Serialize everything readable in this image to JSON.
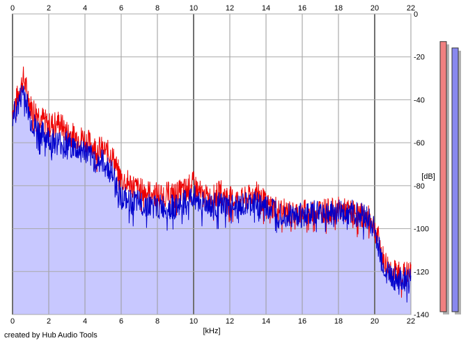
{
  "chart_data": {
    "type": "line",
    "title": "",
    "xlabel": "[kHz]",
    "ylabel": "[dB]",
    "x_ticks": [
      "0",
      "2",
      "4",
      "6",
      "8",
      "10",
      "12",
      "14",
      "16",
      "18",
      "20",
      "22"
    ],
    "y_ticks": [
      "0",
      "-20",
      "-40",
      "-60",
      "-80",
      "-100",
      "-120",
      "-140"
    ],
    "xlim": [
      0,
      22
    ],
    "ylim": [
      -140,
      0
    ],
    "grid": true,
    "series": [
      {
        "color": "#ee0000",
        "x": [
          0,
          0.3,
          0.6,
          0.8,
          1,
          1.5,
          2,
          2.5,
          3,
          3.5,
          4,
          4.5,
          5,
          5.5,
          6,
          6.5,
          7,
          7.5,
          8,
          8.5,
          9,
          9.5,
          10,
          10.5,
          11,
          11.5,
          12,
          12.5,
          13,
          13.5,
          14,
          14.5,
          15,
          15.5,
          16,
          16.5,
          17,
          17.5,
          18,
          18.5,
          19,
          19.5,
          19.9,
          20.2,
          20.5,
          21,
          21.5,
          22
        ],
        "y": [
          -45,
          -38,
          -30,
          -36,
          -43,
          -47,
          -52,
          -50,
          -55,
          -57,
          -58,
          -62,
          -63,
          -66,
          -77,
          -79,
          -82,
          -83,
          -84,
          -84,
          -84,
          -82,
          -79,
          -85,
          -86,
          -83,
          -86,
          -87,
          -86,
          -82,
          -89,
          -90,
          -92,
          -93,
          -92,
          -92,
          -91,
          -92,
          -91,
          -92,
          -93,
          -94,
          -97,
          -105,
          -115,
          -120,
          -121,
          -121
        ]
      },
      {
        "color": "#0000cc",
        "x": [
          0,
          0.3,
          0.6,
          0.8,
          1,
          1.5,
          2,
          2.5,
          3,
          3.5,
          4,
          4.5,
          5,
          5.5,
          6,
          6.5,
          7,
          7.5,
          8,
          8.5,
          9,
          9.5,
          10,
          10.5,
          11,
          11.5,
          12,
          12.5,
          13,
          13.5,
          14,
          14.5,
          15,
          15.5,
          16,
          16.5,
          17,
          17.5,
          18,
          18.5,
          19,
          19.5,
          19.9,
          20.2,
          20.5,
          21,
          21.5,
          22
        ],
        "y": [
          -48,
          -43,
          -35,
          -42,
          -50,
          -55,
          -58,
          -60,
          -60,
          -63,
          -64,
          -68,
          -69,
          -74,
          -85,
          -88,
          -88,
          -89,
          -90,
          -90,
          -90,
          -88,
          -85,
          -88,
          -89,
          -89,
          -90,
          -90,
          -89,
          -88,
          -90,
          -91,
          -93,
          -94,
          -93,
          -93,
          -92,
          -93,
          -92,
          -92,
          -93,
          -94,
          -98,
          -108,
          -118,
          -123,
          -124,
          -124
        ]
      }
    ],
    "fill_color": "#c8c8ff",
    "level_meters": [
      {
        "channel": "left",
        "color": "#f08080",
        "level_db": -13
      },
      {
        "channel": "right",
        "color": "#8888ee",
        "level_db": -16
      }
    ]
  },
  "footer": {
    "credit": "created by Hub Audio Tools"
  }
}
